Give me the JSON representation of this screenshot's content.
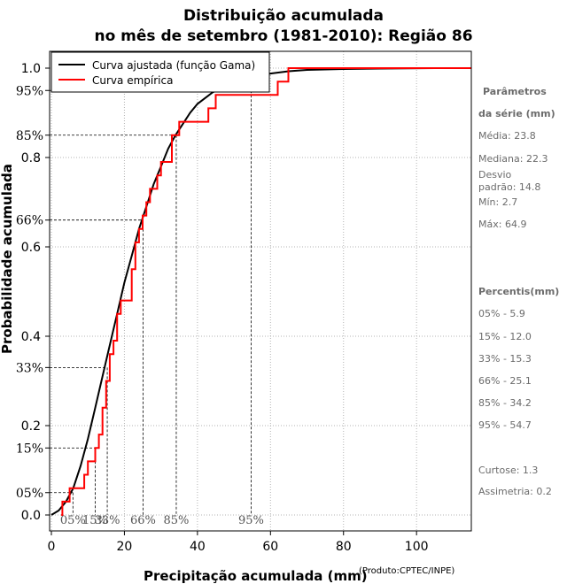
{
  "title_line1": "Distribuição acumulada",
  "title_line2": "no mês de setembro (1981-2010): Região 86",
  "product": "(Produto:CPTEC/INPE)",
  "colors": {
    "fitted": "#000000",
    "empirical": "#ff0000",
    "grid": "#b3b3b3",
    "side_text": "#6b6b6b"
  },
  "stats_panel": {
    "heading1": "Parâmetros",
    "heading2": "da série (mm)",
    "media": "Média: 23.8",
    "mediana": "Mediana: 22.3",
    "desvio1": "Desvio",
    "desvio2": "padrão: 14.8",
    "min": "Mín: 2.7",
    "max": "Máx: 64.9",
    "percentis_heading": "Percentis(mm)",
    "p05": "05% - 5.9",
    "p15": "15% - 12.0",
    "p33": "33% - 15.3",
    "p66": "66% - 25.1",
    "p85": "85% - 34.2",
    "p95": "95% - 54.7",
    "curtose": "Curtose: 1.3",
    "assimetria": "Assimetria: 0.2"
  },
  "chart_data": {
    "type": "line",
    "xlabel": "Precipitação acumulada (mm)",
    "ylabel": "Probabilidade acumulada",
    "xlim": [
      0,
      115
    ],
    "ylim": [
      0,
      1
    ],
    "x_ticks": [
      0,
      20,
      40,
      60,
      80,
      100
    ],
    "y_ticks": [
      0.0,
      0.2,
      0.4,
      0.6,
      0.8,
      1.0
    ],
    "y_tick_labels": [
      "0.0",
      "0.2",
      "0.4",
      "0.6",
      "0.8",
      "1.0"
    ],
    "grid": true,
    "legend_position": "top-left",
    "series": [
      {
        "name": "Curva ajustada (função Gama)",
        "style": "smooth",
        "x": [
          0,
          2,
          4,
          6,
          8,
          10,
          12,
          14,
          16,
          18,
          20,
          22,
          24,
          26,
          28,
          30,
          32,
          34,
          36,
          38,
          40,
          44,
          48,
          52,
          56,
          60,
          65,
          70,
          80,
          90,
          105
        ],
        "y": [
          0.0,
          0.01,
          0.03,
          0.06,
          0.11,
          0.17,
          0.24,
          0.31,
          0.38,
          0.45,
          0.52,
          0.58,
          0.64,
          0.69,
          0.74,
          0.78,
          0.82,
          0.85,
          0.875,
          0.9,
          0.92,
          0.945,
          0.962,
          0.975,
          0.983,
          0.988,
          0.993,
          0.996,
          0.998,
          0.999,
          1.0
        ]
      },
      {
        "name": "Curva empírica",
        "style": "step",
        "x": [
          2.7,
          3.0,
          5.0,
          7.0,
          9.0,
          10.0,
          12.0,
          13.0,
          14.0,
          15.0,
          16.0,
          17.0,
          18.0,
          19.0,
          21.0,
          22.0,
          23.0,
          24.0,
          25.0,
          26.0,
          27.0,
          29.0,
          30.0,
          31.0,
          33.0,
          34.0,
          35.0,
          37.0,
          43.0,
          45.0,
          48.0,
          53.0,
          55.0,
          62.0,
          64.9,
          115.0
        ],
        "y": [
          0.0,
          0.03,
          0.06,
          0.06,
          0.09,
          0.12,
          0.15,
          0.18,
          0.24,
          0.3,
          0.36,
          0.39,
          0.45,
          0.48,
          0.48,
          0.55,
          0.61,
          0.64,
          0.67,
          0.7,
          0.73,
          0.76,
          0.79,
          0.79,
          0.85,
          0.85,
          0.88,
          0.88,
          0.91,
          0.94,
          0.94,
          0.94,
          0.94,
          0.97,
          1.0,
          1.0
        ]
      }
    ],
    "percentile_markers": [
      {
        "label": "05%",
        "p": 0.05,
        "x": 5.9
      },
      {
        "label": "15%",
        "p": 0.15,
        "x": 12.0
      },
      {
        "label": "33%",
        "p": 0.33,
        "x": 15.3
      },
      {
        "label": "66%",
        "p": 0.66,
        "x": 25.1
      },
      {
        "label": "85%",
        "p": 0.85,
        "x": 34.2
      },
      {
        "label": "95%",
        "p": 0.95,
        "x": 54.7
      }
    ]
  }
}
